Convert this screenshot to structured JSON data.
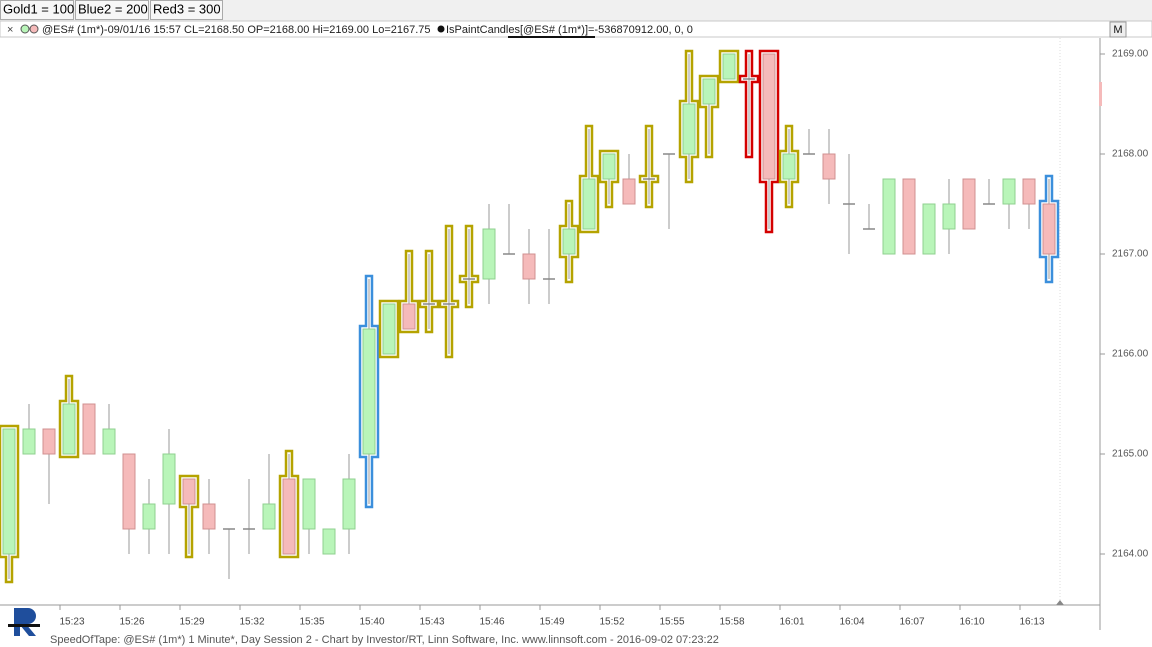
{
  "chart_data": {
    "type": "candlestick",
    "title": "@ES# (1m*)-09/01/16 15:57 CL=2168.50 OP=2168.00 Hi=2169.00 Lo=2167.75",
    "annotation": "IsPaintCandles[@ES# (1m*)]=-536870912.00, 0, 0",
    "footer": "SpeedOfTape: @ES# (1m*) 1 Minute*, Day Session 2 - Chart by Investor/RT, Linn Software, Inc. www.linnsoft.com - 2016-09-02 07:23:22",
    "button": "M",
    "paints": [
      {
        "value": 100,
        "label": "Gold1 = 100",
        "color": "#b5a300"
      },
      {
        "value": 200,
        "label": "Blue2 = 200",
        "color": "#3b8fdc"
      },
      {
        "value": 300,
        "label": "Red3 = 300",
        "color": "#d40000"
      }
    ],
    "categories": [
      null,
      null,
      null,
      "15:23",
      null,
      null,
      "15:26",
      null,
      null,
      "15:29",
      null,
      null,
      "15:32",
      null,
      null,
      "15:35",
      null,
      null,
      "15:40",
      null,
      null,
      "15:43",
      null,
      null,
      "15:46",
      null,
      null,
      "15:49",
      null,
      null,
      "15:52",
      null,
      null,
      "15:55",
      null,
      null,
      "15:58",
      null,
      null,
      "16:01",
      null,
      null,
      "16:04",
      null,
      null,
      "16:07",
      null,
      null,
      "16:10",
      null,
      null,
      "16:13",
      null
    ],
    "open": [
      2164,
      2165,
      2165.25,
      2165,
      2165.5,
      2165,
      2165,
      2164.25,
      2164.5,
      2164.75,
      2164.5,
      2164.25,
      2164.25,
      2164.25,
      2164.75,
      2164.25,
      2164,
      2164.25,
      2165,
      2166,
      2166.5,
      2166.5,
      2166.5,
      2166.75,
      2166.75,
      2167,
      2167,
      2166.75,
      2167,
      2167.25,
      2167.75,
      2167.75,
      2167.75,
      2168,
      2168,
      2168.5,
      2168.75,
      2168.75,
      2169,
      2167.75,
      2168,
      2168,
      2167.5,
      2167.25,
      2167,
      2167.75,
      2167,
      2167.25,
      2167.75,
      2167.5,
      2167.5,
      2167.75,
      2167.5
    ],
    "high": [
      2165.25,
      2165.5,
      2165.25,
      2165.75,
      2165.5,
      2165.5,
      2165,
      2164.75,
      2165.25,
      2164.75,
      2164.75,
      2164.25,
      2164.75,
      2165,
      2165,
      2164.75,
      2164.25,
      2165,
      2166.75,
      2166.5,
      2167,
      2167,
      2167.25,
      2167.25,
      2167.5,
      2167.5,
      2167.25,
      2167.25,
      2167.5,
      2168.25,
      2168,
      2168,
      2168.25,
      2168,
      2169,
      2168.75,
      2169,
      2169,
      2169,
      2168.25,
      2168.25,
      2168.25,
      2168,
      2167.5,
      2167.75,
      2167.75,
      2167.5,
      2167.75,
      2167.75,
      2167.75,
      2167.75,
      2167.75,
      2167.75
    ],
    "low": [
      2163.75,
      2165,
      2164.5,
      2165,
      2165,
      2165,
      2164,
      2164,
      2164,
      2164,
      2164,
      2163.75,
      2164,
      2164.25,
      2164,
      2164,
      2164,
      2164,
      2164.5,
      2166,
      2166.25,
      2166.25,
      2166,
      2166.5,
      2166.5,
      2167,
      2166.5,
      2166.5,
      2166.75,
      2167.25,
      2167.5,
      2167.5,
      2167.5,
      2167.25,
      2167.75,
      2168,
      2168.75,
      2168,
      2167.25,
      2167.5,
      2168,
      2167.5,
      2167,
      2167.25,
      2167,
      2167,
      2167,
      2167,
      2167.25,
      2167.5,
      2167.25,
      2167.25,
      2166.75
    ],
    "close": [
      2165.25,
      2165.25,
      2165,
      2165.5,
      2165,
      2165.25,
      2164.25,
      2164.5,
      2165,
      2164.5,
      2164.25,
      2164.25,
      2164.25,
      2164.5,
      2164,
      2164.75,
      2164.25,
      2164.75,
      2166.25,
      2166.5,
      2166.25,
      2166.5,
      2166.5,
      2166.75,
      2167.25,
      2167,
      2166.75,
      2166.75,
      2167.25,
      2167.75,
      2168,
      2167.5,
      2167.75,
      2168,
      2168.5,
      2168.75,
      2169,
      2168.75,
      2167.75,
      2168,
      2168,
      2167.75,
      2167.5,
      2167.25,
      2167.75,
      2167,
      2167.5,
      2167.5,
      2167.25,
      2167.5,
      2167.75,
      2167.5,
      2167
    ],
    "paint": [
      100,
      null,
      null,
      100,
      null,
      null,
      null,
      null,
      null,
      100,
      null,
      null,
      null,
      null,
      100,
      null,
      null,
      null,
      200,
      100,
      100,
      100,
      100,
      100,
      null,
      null,
      null,
      null,
      100,
      100,
      100,
      null,
      100,
      null,
      100,
      100,
      100,
      300,
      300,
      100,
      null,
      null,
      null,
      null,
      null,
      null,
      null,
      null,
      null,
      null,
      null,
      null,
      200
    ],
    "up_color": "#b9f5b9",
    "down_color": "#f5baba",
    "ylim": [
      2163.49,
      2169.16
    ],
    "yticks": [
      {
        "value": 2164,
        "label": "2164.00"
      },
      {
        "value": 2165,
        "label": "2165.00"
      },
      {
        "value": 2166,
        "label": "2166.00"
      },
      {
        "value": 2167,
        "label": "2167.00"
      },
      {
        "value": 2168,
        "label": "2168.00"
      },
      {
        "value": 2169,
        "label": "2169.00"
      }
    ]
  }
}
